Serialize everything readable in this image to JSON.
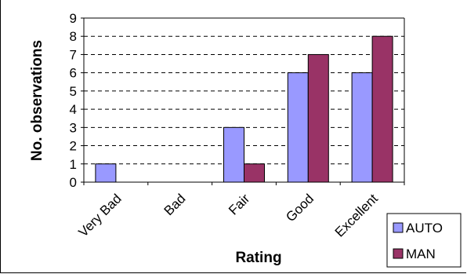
{
  "chart_data": {
    "type": "bar",
    "categories": [
      "Very Bad",
      "Bad",
      "Fair",
      "Good",
      "Excellent"
    ],
    "series": [
      {
        "name": "AUTO",
        "values": [
          1,
          0,
          3,
          6,
          6
        ],
        "color": "#9999FF"
      },
      {
        "name": "MAN",
        "values": [
          0,
          0,
          1,
          7,
          8
        ],
        "color": "#993366"
      }
    ],
    "xlabel": "Rating",
    "ylabel": "No. observations",
    "ylim": [
      0,
      9
    ],
    "yticks": [
      0,
      1,
      2,
      3,
      4,
      5,
      6,
      7,
      8,
      9
    ],
    "grid": "horizontal dashed",
    "legend_position": "bottom-right"
  }
}
